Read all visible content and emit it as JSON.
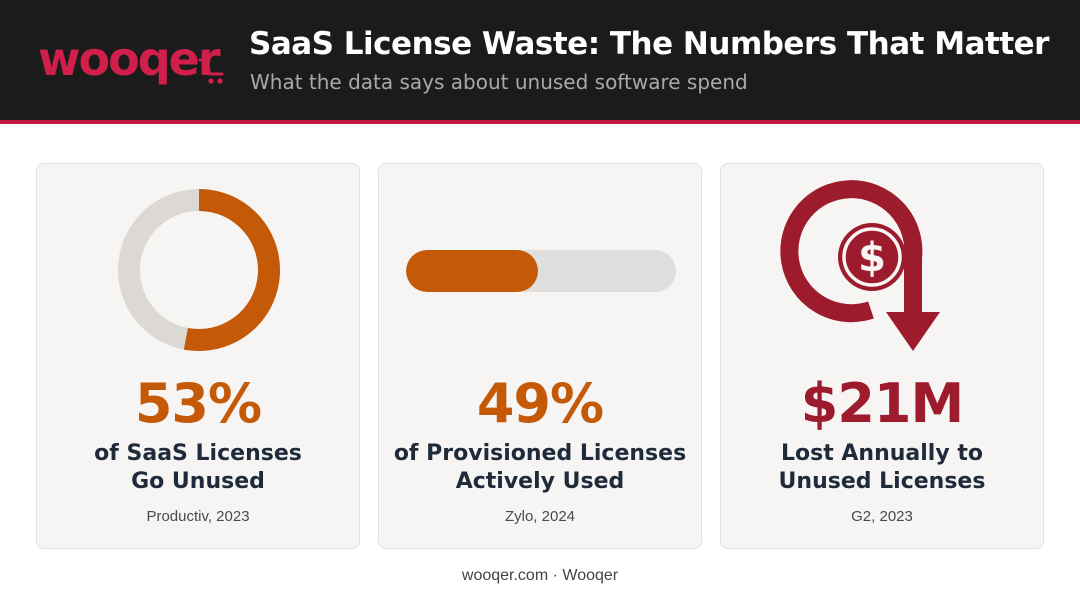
{
  "header": {
    "logo_text": "wooqer",
    "title": "SaaS License Waste: The Numbers That Matter",
    "subtitle": "What the data says about unused software spend"
  },
  "colors": {
    "brand": "#cf1f4a",
    "accent_orange": "#c45a08",
    "accent_red": "#9c1b2c",
    "track_gray": "#e0dfdd"
  },
  "cards": [
    {
      "icon": "donut-chart-icon",
      "fraction": 0.53,
      "value": "53%",
      "label_line1": "of SaaS Licenses",
      "label_line2": "Go Unused",
      "source": "Productiv, 2023"
    },
    {
      "icon": "progress-bar",
      "fraction": 0.49,
      "value": "49%",
      "label_line1": "of Provisioned Licenses",
      "label_line2": "Actively Used",
      "source": "Zylo, 2024"
    },
    {
      "icon": "dollar-down-arrow-icon",
      "value": "$21M",
      "label_line1": "Lost Annually to",
      "label_line2": "Unused Licenses",
      "source": "G2, 2023"
    }
  ],
  "footer": {
    "text": "wooqer.com · Wooqer"
  }
}
